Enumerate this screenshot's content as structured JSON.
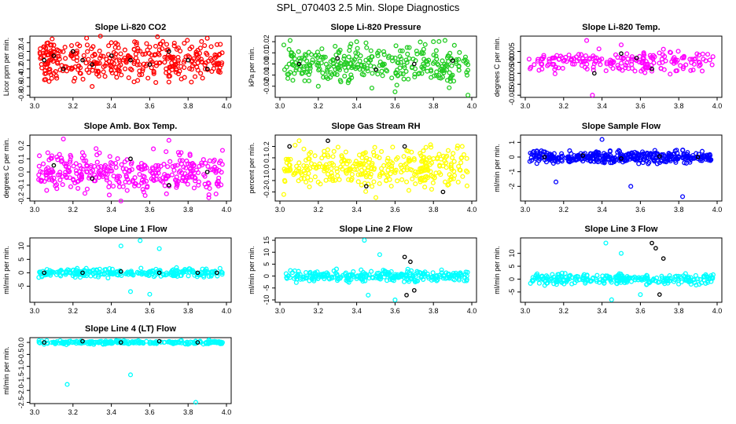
{
  "figure_title": "SPL_070403  2.5 Min. Slope Diagnostics",
  "colors": {
    "red": "#ff0000",
    "green": "#22cc22",
    "magenta": "#ff00ff",
    "yellow": "#ffff00",
    "blue": "#0000ff",
    "cyan": "#00ffff",
    "overlay": "#000000"
  },
  "chart_data": [
    {
      "type": "scatter",
      "title": "Slope Li-820 CO2",
      "ylabel": "Licor ppm per min.",
      "xlim": [
        3.0,
        4.0
      ],
      "xticks": [
        "3.0",
        "3.2",
        "3.4",
        "3.6",
        "3.8",
        "4.0"
      ],
      "ylim": [
        -0.85,
        0.55
      ],
      "yticks": [
        "-0.8",
        "-0.6",
        "-0.4",
        "-0.2",
        "0.0",
        "0.2",
        "0.4"
      ],
      "color": "red",
      "spread": 0.28,
      "n": 360,
      "series": [
        {
          "name": "main",
          "x": [
            3.05,
            3.1,
            3.2,
            3.3,
            3.4,
            3.5,
            3.6,
            3.7,
            3.8,
            3.9,
            3.95
          ],
          "y": [
            0.1,
            -0.3,
            0.2,
            -0.6,
            0.4,
            -0.2,
            0.3,
            -0.5,
            0.1,
            0.5,
            -0.1
          ]
        },
        {
          "name": "overlay",
          "x": [
            3.05,
            3.1,
            3.15,
            3.2,
            3.25,
            3.3,
            3.4,
            3.5,
            3.6,
            3.7,
            3.8,
            3.9
          ],
          "y": [
            0.0,
            0.1,
            -0.2,
            0.2,
            0.0,
            -0.1,
            0.1,
            0.0,
            -0.1,
            0.2,
            0.0,
            -0.2
          ]
        }
      ]
    },
    {
      "type": "scatter",
      "title": "Slope Li-820 Pressure",
      "ylabel": "kPa per min.",
      "xlim": [
        3.0,
        4.0
      ],
      "xticks": [
        "3.0",
        "3.2",
        "3.4",
        "3.6",
        "3.8",
        "4.0"
      ],
      "ylim": [
        -0.03,
        0.025
      ],
      "yticks": [
        "-0.02",
        "-0.01",
        "0.00",
        "0.01",
        "0.02"
      ],
      "color": "green",
      "spread": 0.011,
      "n": 320,
      "series": [
        {
          "name": "main",
          "x": [
            3.2,
            3.4,
            3.6,
            3.8,
            3.98
          ],
          "y": [
            -0.02,
            0.02,
            -0.025,
            0.02,
            -0.028
          ]
        },
        {
          "name": "overlay",
          "x": [
            3.1,
            3.3,
            3.5,
            3.7,
            3.9
          ],
          "y": [
            0.0,
            0.005,
            -0.005,
            0.0,
            0.003
          ]
        }
      ]
    },
    {
      "type": "scatter",
      "title": "Slope Li-820 Temp.",
      "ylabel": "degrees C per min.",
      "xlim": [
        3.0,
        4.0
      ],
      "xticks": [
        "3.0",
        "3.2",
        "3.4",
        "3.6",
        "3.8",
        "4.0"
      ],
      "ylim": [
        -0.016,
        0.012
      ],
      "yticks": [
        "-0.015",
        "-0.010",
        "-0.005",
        "0.000",
        "0.005"
      ],
      "color": "magenta",
      "spread": 0.003,
      "n": 200,
      "series": [
        {
          "name": "main",
          "x": [
            3.32,
            3.35,
            3.5,
            3.66,
            3.72
          ],
          "y": [
            0.01,
            -0.015,
            0.008,
            -0.004,
            0.006
          ]
        },
        {
          "name": "overlay",
          "x": [
            3.36,
            3.5,
            3.58,
            3.66
          ],
          "y": [
            -0.005,
            0.004,
            0.002,
            -0.003
          ]
        }
      ]
    },
    {
      "type": "scatter",
      "title": "Slope Amb. Box Temp.",
      "ylabel": "degrees C per min.",
      "xlim": [
        3.0,
        4.0
      ],
      "xticks": [
        "3.0",
        "3.2",
        "3.4",
        "3.6",
        "3.8",
        "4.0"
      ],
      "ylim": [
        -0.22,
        0.28
      ],
      "yticks": [
        "-0.2",
        "-0.1",
        "0.0",
        "0.1",
        "0.2"
      ],
      "color": "magenta",
      "spread": 0.1,
      "n": 340,
      "series": [
        {
          "name": "main",
          "x": [
            3.15,
            3.45,
            3.7
          ],
          "y": [
            0.25,
            -0.22,
            0.24
          ]
        },
        {
          "name": "overlay",
          "x": [
            3.1,
            3.3,
            3.5,
            3.7,
            3.9
          ],
          "y": [
            0.05,
            -0.05,
            0.1,
            -0.1,
            0.0
          ]
        }
      ]
    },
    {
      "type": "scatter",
      "title": "Slope Gas Stream RH",
      "ylabel": "percent per min.",
      "xlim": [
        3.0,
        4.0
      ],
      "xticks": [
        "3.0",
        "3.2",
        "3.4",
        "3.6",
        "3.8",
        "4.0"
      ],
      "ylim": [
        -0.28,
        0.3
      ],
      "yticks": [
        "-0.2",
        "-0.1",
        "0.0",
        "0.1",
        "0.2"
      ],
      "color": "yellow",
      "spread": 0.12,
      "n": 340,
      "series": [
        {
          "name": "main",
          "x": [
            3.1,
            3.5,
            3.95
          ],
          "y": [
            0.25,
            -0.25,
            0.2
          ]
        },
        {
          "name": "overlay",
          "x": [
            3.05,
            3.25,
            3.45,
            3.65,
            3.85
          ],
          "y": [
            0.2,
            0.25,
            -0.15,
            0.2,
            -0.2
          ]
        }
      ]
    },
    {
      "type": "scatter",
      "title": "Slope Sample Flow",
      "ylabel": "ml/min per min.",
      "xlim": [
        3.0,
        4.0
      ],
      "xticks": [
        "3.0",
        "3.2",
        "3.4",
        "3.6",
        "3.8",
        "4.0"
      ],
      "ylim": [
        -3.0,
        1.5
      ],
      "yticks": [
        "-2",
        "-1",
        "0",
        "1"
      ],
      "color": "blue",
      "spread": 0.28,
      "n": 380,
      "series": [
        {
          "name": "main",
          "x": [
            3.16,
            3.4,
            3.55,
            3.82
          ],
          "y": [
            -1.7,
            1.2,
            -2.0,
            -2.7
          ]
        },
        {
          "name": "overlay",
          "x": [
            3.1,
            3.3,
            3.5,
            3.7,
            3.9
          ],
          "y": [
            0.0,
            0.1,
            -0.1,
            0.05,
            0.0
          ]
        }
      ]
    },
    {
      "type": "scatter",
      "title": "Slope Line 1 Flow",
      "ylabel": "ml/min per min.",
      "xlim": [
        3.0,
        4.0
      ],
      "xticks": [
        "3.0",
        "3.2",
        "3.4",
        "3.6",
        "3.8",
        "4.0"
      ],
      "ylim": [
        -11,
        13
      ],
      "yticks": [
        "-5",
        "0",
        "5",
        "10"
      ],
      "color": "cyan",
      "spread": 1.0,
      "n": 260,
      "series": [
        {
          "name": "main",
          "x": [
            3.45,
            3.5,
            3.55,
            3.6,
            3.65
          ],
          "y": [
            10,
            -7,
            12,
            -8,
            9
          ]
        },
        {
          "name": "overlay",
          "x": [
            3.05,
            3.25,
            3.45,
            3.65,
            3.85,
            3.95
          ],
          "y": [
            0,
            0,
            0.5,
            0,
            0,
            0
          ]
        }
      ]
    },
    {
      "type": "scatter",
      "title": "Slope Line 2 Flow",
      "ylabel": "ml/min per min.",
      "xlim": [
        3.0,
        4.0
      ],
      "xticks": [
        "3.0",
        "3.2",
        "3.4",
        "3.6",
        "3.8",
        "4.0"
      ],
      "ylim": [
        -11,
        16
      ],
      "yticks": [
        "-10",
        "-5",
        "0",
        "5",
        "10",
        "15"
      ],
      "color": "cyan",
      "spread": 1.5,
      "n": 280,
      "series": [
        {
          "name": "main",
          "x": [
            3.44,
            3.46,
            3.52,
            3.6
          ],
          "y": [
            15,
            -8,
            9,
            -10
          ]
        },
        {
          "name": "overlay",
          "x": [
            3.65,
            3.66,
            3.68,
            3.7
          ],
          "y": [
            8,
            -8,
            6,
            -6
          ]
        }
      ]
    },
    {
      "type": "scatter",
      "title": "Slope Line 3 Flow",
      "ylabel": "ml/min per min.",
      "xlim": [
        3.0,
        4.0
      ],
      "xticks": [
        "3.0",
        "3.2",
        "3.4",
        "3.6",
        "3.8",
        "4.0"
      ],
      "ylim": [
        -9,
        16
      ],
      "yticks": [
        "-5",
        "0",
        "5",
        "10"
      ],
      "color": "cyan",
      "spread": 1.3,
      "n": 280,
      "series": [
        {
          "name": "main",
          "x": [
            3.42,
            3.45,
            3.5,
            3.6
          ],
          "y": [
            14,
            -8,
            10,
            -6
          ]
        },
        {
          "name": "overlay",
          "x": [
            3.66,
            3.68,
            3.7,
            3.72
          ],
          "y": [
            14,
            12,
            -6,
            8
          ]
        }
      ]
    },
    {
      "type": "scatter",
      "title": "Slope Line 4 (LT) Flow",
      "ylabel": "ml/min per min.",
      "xlim": [
        3.0,
        4.0
      ],
      "xticks": [
        "3.0",
        "3.2",
        "3.4",
        "3.6",
        "3.8",
        "4.0"
      ],
      "ylim": [
        -2.55,
        0.2
      ],
      "yticks": [
        "-2.5",
        "-2.0",
        "-1.5",
        "-1.0",
        "-0.5",
        "0.0"
      ],
      "color": "cyan",
      "spread": 0.05,
      "n": 240,
      "series": [
        {
          "name": "main",
          "x": [
            3.17,
            3.5,
            3.84
          ],
          "y": [
            -1.75,
            -1.35,
            -2.5
          ]
        },
        {
          "name": "overlay",
          "x": [
            3.05,
            3.25,
            3.45,
            3.65,
            3.85
          ],
          "y": [
            0.0,
            0.05,
            0.0,
            0.05,
            0.0
          ]
        }
      ]
    }
  ]
}
